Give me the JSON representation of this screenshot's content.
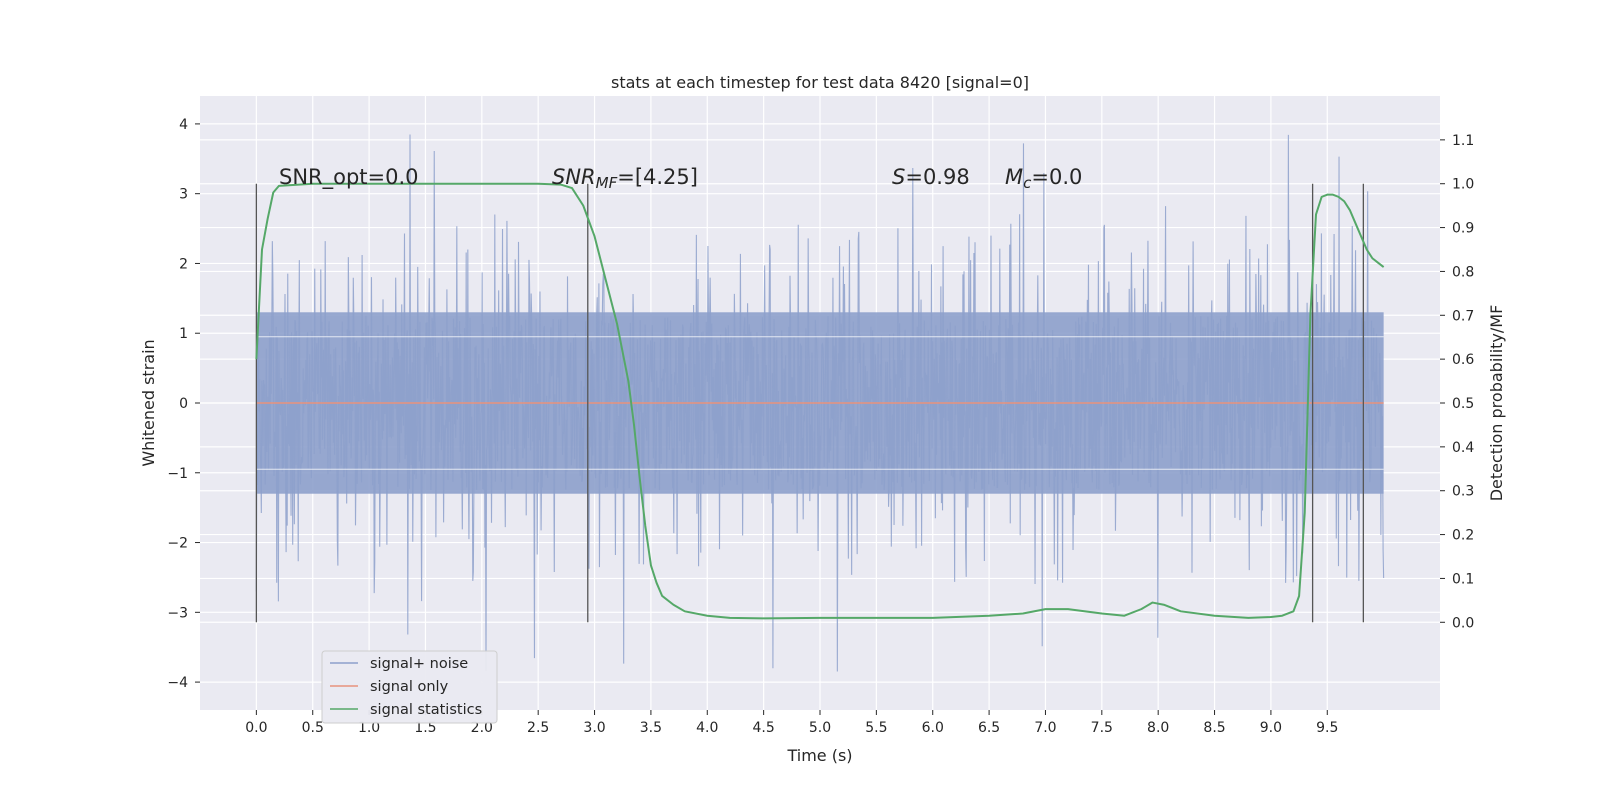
{
  "chart_data": {
    "type": "line",
    "title": "stats at each timestep for test data 8420 [signal=0]",
    "xlabel": "Time (s)",
    "ylabel_left": "Whitened strain",
    "ylabel_right": "Detection probability/MF",
    "xlim": [
      -0.5,
      10.5
    ],
    "ylim_left": [
      -4.4,
      4.4
    ],
    "ylim_right": [
      -0.2,
      1.2
    ],
    "x_ticks": [
      "0.0",
      "0.5",
      "1.0",
      "1.5",
      "2.0",
      "2.5",
      "3.0",
      "3.5",
      "4.0",
      "4.5",
      "5.0",
      "5.5",
      "6.0",
      "6.5",
      "7.0",
      "7.5",
      "8.0",
      "8.5",
      "9.0",
      "9.5"
    ],
    "y_ticks_left": [
      "4",
      "3",
      "2",
      "1",
      "0",
      "−1",
      "−2",
      "−3",
      "−4"
    ],
    "y_ticks_right": [
      "1.1",
      "1.0",
      "0.9",
      "0.8",
      "0.7",
      "0.6",
      "0.5",
      "0.4",
      "0.3",
      "0.2",
      "0.1",
      "0.0"
    ],
    "grid": true,
    "legend": {
      "position": "lower-left",
      "entries": [
        {
          "label": "signal+ noise",
          "color": "#8da0cb"
        },
        {
          "label": "signal only",
          "color": "#e8927c"
        },
        {
          "label": "signal statistics",
          "color": "#55a868"
        }
      ]
    },
    "annotations": {
      "snr_opt": "SNR_opt=0.0",
      "snr_mf_main": "SNR",
      "snr_mf_sub": "MF",
      "snr_mf_val": "=[4.25]",
      "s_main": "S",
      "s_val": "=0.98",
      "mc_main": "M",
      "mc_sub": "c",
      "mc_val": "=0.0"
    },
    "markers_x": [
      0.0,
      2.94,
      9.37,
      9.82
    ],
    "noise": {
      "x_range": [
        0.0,
        10.0
      ],
      "samples": 2048,
      "band_low": -1.3,
      "band_high": 1.3,
      "peak_max": 4.0,
      "peak_min": -4.1
    },
    "signal_only": {
      "x": [
        0.0,
        10.0
      ],
      "y": [
        0.0,
        0.0
      ]
    },
    "statistics": {
      "x": [
        0.0,
        0.05,
        0.1,
        0.15,
        0.2,
        0.5,
        1.0,
        1.5,
        2.0,
        2.5,
        2.7,
        2.8,
        2.9,
        3.0,
        3.1,
        3.2,
        3.3,
        3.35,
        3.4,
        3.45,
        3.5,
        3.55,
        3.6,
        3.7,
        3.8,
        4.0,
        4.2,
        4.5,
        5.0,
        5.5,
        6.0,
        6.5,
        6.8,
        7.0,
        7.2,
        7.5,
        7.7,
        7.85,
        7.95,
        8.05,
        8.2,
        8.5,
        8.8,
        9.0,
        9.1,
        9.2,
        9.25,
        9.3,
        9.35,
        9.4,
        9.45,
        9.5,
        9.55,
        9.6,
        9.65,
        9.7,
        9.75,
        9.8,
        9.85,
        9.9,
        9.95,
        10.0
      ],
      "y": [
        0.6,
        0.85,
        0.92,
        0.98,
        0.995,
        1.0,
        1.0,
        1.0,
        1.0,
        1.0,
        0.998,
        0.99,
        0.95,
        0.88,
        0.78,
        0.68,
        0.55,
        0.45,
        0.33,
        0.22,
        0.13,
        0.09,
        0.06,
        0.04,
        0.025,
        0.015,
        0.01,
        0.009,
        0.01,
        0.01,
        0.01,
        0.015,
        0.02,
        0.03,
        0.03,
        0.02,
        0.015,
        0.03,
        0.045,
        0.04,
        0.025,
        0.015,
        0.01,
        0.012,
        0.015,
        0.025,
        0.06,
        0.25,
        0.7,
        0.93,
        0.97,
        0.975,
        0.975,
        0.97,
        0.96,
        0.94,
        0.91,
        0.88,
        0.85,
        0.83,
        0.82,
        0.81
      ]
    }
  }
}
